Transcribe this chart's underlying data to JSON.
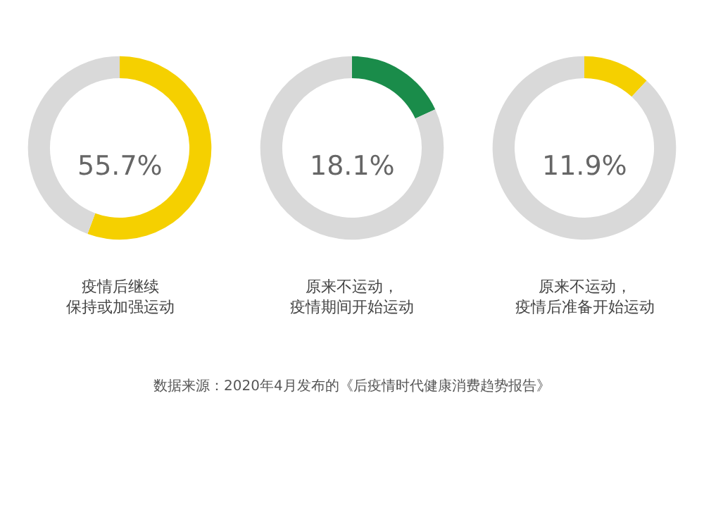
{
  "chart_data": [
    {
      "type": "donut",
      "title": "疫情后继续保持或加强运动",
      "categories": [
        null,
        null
      ],
      "values": [
        55.7,
        44.3
      ],
      "colors": [
        "#f5d000",
        "#d9d9d9"
      ],
      "annotations": [
        "55.7%"
      ]
    },
    {
      "type": "donut",
      "title": "原来不运动，疫情期间开始运动",
      "categories": [
        null,
        null
      ],
      "values": [
        18.1,
        81.9
      ],
      "colors": [
        "#1a8c4a",
        "#d9d9d9"
      ],
      "annotations": [
        "18.1%"
      ]
    },
    {
      "type": "donut",
      "title": "原来不运动，疫情后准备开始运动",
      "categories": [
        null,
        null
      ],
      "values": [
        11.9,
        88.1
      ],
      "colors": [
        "#f5d000",
        "#d9d9d9"
      ],
      "annotations": [
        "11.9%",
        "数据来源：2020年4月发布的《后疫情时代健康消费趋势报告》"
      ]
    }
  ]
}
